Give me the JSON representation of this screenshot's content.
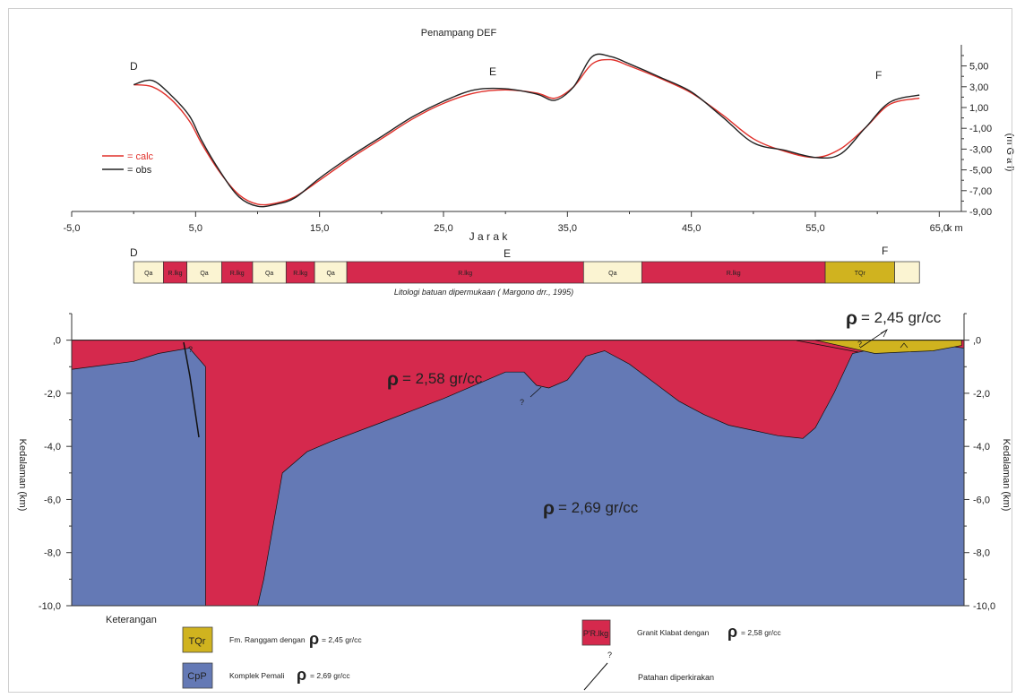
{
  "title": "Penampang DEF",
  "x_axis_label": "J a r a k",
  "x_unit": "k m",
  "x_ticks": [
    "-5,0",
    "5,0",
    "15,0",
    "25,0",
    "35,0",
    "45,0",
    "55,0",
    "65,0"
  ],
  "gravity_axis_label": "(m G a l)",
  "gravity_ticks": [
    "5,00",
    "3,00",
    "1,00",
    "-1,00",
    "-3,00",
    "-5,00",
    "-7,00",
    "-9,00"
  ],
  "depth_axis_label": "Kedalaman (km)",
  "depth_ticks": [
    ",0",
    "-2,0",
    "-4,0",
    "-6,0",
    "-8,0",
    "-10,0"
  ],
  "depth_ticks_right": [
    ",0",
    "-2,0",
    "-4,0",
    "-6,0",
    "-8,0",
    "-10,0"
  ],
  "profile_points": {
    "D": "D",
    "E": "E",
    "F": "F"
  },
  "legend_small": {
    "calc": "= calc",
    "obs": "= obs"
  },
  "lithology_caption": "Litologi batuan dipermukaan ( Margono drr., 1995)",
  "lithology_strip": [
    {
      "label": "Qa",
      "from": 0.0,
      "to": 2.4,
      "color": "#fbf4d2"
    },
    {
      "label": "R.lkg",
      "from": 2.4,
      "to": 4.3,
      "color": "#d5294d"
    },
    {
      "label": "Qa",
      "from": 4.3,
      "to": 7.1,
      "color": "#fbf4d2"
    },
    {
      "label": "R.lkg",
      "from": 7.1,
      "to": 9.6,
      "color": "#d5294d"
    },
    {
      "label": "Qa",
      "from": 9.6,
      "to": 12.3,
      "color": "#fbf4d2"
    },
    {
      "label": "R.lkg",
      "from": 12.3,
      "to": 14.6,
      "color": "#d5294d"
    },
    {
      "label": "Qa",
      "from": 14.6,
      "to": 17.2,
      "color": "#fbf4d2"
    },
    {
      "label": "R.lkg",
      "from": 17.2,
      "to": 36.3,
      "color": "#d5294d"
    },
    {
      "label": "Qa",
      "from": 36.3,
      "to": 41.0,
      "color": "#fbf4d2"
    },
    {
      "label": "R.lkg",
      "from": 41.0,
      "to": 55.8,
      "color": "#d5294d"
    },
    {
      "label": "TQr",
      "from": 55.8,
      "to": 61.4,
      "color": "#d0b31f"
    },
    {
      "label": "",
      "from": 61.4,
      "to": 63.4,
      "color": "#fbf4d2"
    }
  ],
  "density_labels": {
    "granite": "= 2,58 gr/cc",
    "basement": "= 2,69 gr/cc",
    "ranggam": "= 2,45 gr/cc"
  },
  "rho_symbol": "ρ",
  "question_mark": "?",
  "legend_title": "Keterangan",
  "legend_items": [
    {
      "swatch": "TQr",
      "text": "Fm.  Ranggam dengan",
      "density": "= 2,45 gr/cc",
      "color": "#d0b31f"
    },
    {
      "swatch": "CpP",
      "text": "Komplek Pemali",
      "density": "= 2,69 gr/cc",
      "color": "#6479b5"
    },
    {
      "swatch": "P'R.lkg",
      "text": "Granit Klabat dengan",
      "density": "= 2,58 gr/cc",
      "color": "#d5294d"
    },
    {
      "swatch": "?",
      "text": "Patahan diperkirakan",
      "density": "",
      "color": "#000000"
    }
  ],
  "colors": {
    "calc": "#e0302a",
    "obs": "#222222",
    "granite": "#d5294d",
    "basement": "#6479b5",
    "ranggam": "#d0b31f",
    "alluvium": "#fbf4d2"
  },
  "chart_data": [
    {
      "type": "line",
      "title": "Penampang DEF",
      "xlabel": "J a r a k (k m)",
      "ylabel": "(m G a l)",
      "xlim": [
        -5,
        67
      ],
      "ylim": [
        -9,
        6
      ],
      "grid": false,
      "legend": "left",
      "series": [
        {
          "name": "= calc",
          "x": [
            0,
            1.5,
            3,
            4.5,
            5.5,
            7,
            8.5,
            10,
            11.5,
            13,
            15,
            17.5,
            20,
            22.5,
            25,
            27.5,
            30,
            32.5,
            34,
            35.5,
            37,
            38.5,
            40,
            42.5,
            45,
            47.5,
            50,
            52.5,
            55,
            57,
            59,
            61,
            63.4
          ],
          "y": [
            3.2,
            3.0,
            1.8,
            -0.3,
            -2.5,
            -5.3,
            -7.4,
            -8.3,
            -8.2,
            -7.6,
            -6.0,
            -3.9,
            -2.0,
            -0.1,
            1.4,
            2.4,
            2.7,
            2.4,
            1.9,
            3.0,
            5.2,
            5.6,
            5.0,
            3.8,
            2.4,
            0.3,
            -2.0,
            -3.2,
            -3.8,
            -3.0,
            -1.0,
            1.3,
            1.9
          ]
        },
        {
          "name": "= obs",
          "x": [
            0,
            1.5,
            3,
            4.5,
            5.5,
            7,
            8.5,
            10,
            11.5,
            13,
            15,
            17.5,
            20,
            22.5,
            25,
            27.5,
            30,
            32.5,
            34,
            35.5,
            37,
            38.5,
            40,
            42.5,
            45,
            47.5,
            50,
            52.5,
            55,
            57,
            59,
            61,
            63.4
          ],
          "y": [
            3.2,
            3.6,
            2.2,
            0.2,
            -2.2,
            -5.2,
            -7.6,
            -8.5,
            -8.3,
            -7.7,
            -5.8,
            -3.7,
            -1.8,
            0.1,
            1.6,
            2.7,
            2.8,
            2.3,
            1.7,
            3.0,
            5.9,
            5.9,
            5.2,
            3.9,
            2.5,
            0.1,
            -2.4,
            -3.1,
            -3.8,
            -3.5,
            -1.0,
            1.5,
            2.2
          ]
        }
      ]
    },
    {
      "type": "area",
      "title": "",
      "xlabel": "J a r a k (k m)",
      "ylabel": "Kedalaman (km)",
      "xlim": [
        -5,
        67
      ],
      "ylim": [
        -10,
        1
      ],
      "grid": false,
      "legend": "bottom",
      "series": [
        {
          "name": "Komplek Pemali",
          "x": [
            -5,
            0,
            2,
            4.5,
            5.8,
            5.8,
            10,
            10.5,
            12,
            14,
            16,
            20,
            25,
            28,
            30,
            31.5,
            32.5,
            33.5,
            35,
            36.5,
            38,
            40,
            42,
            44,
            46,
            48,
            50,
            52,
            54,
            55,
            56.5,
            58,
            60,
            62,
            64,
            65.5,
            67
          ],
          "y": [
            -1.1,
            -0.8,
            -0.5,
            -0.3,
            -1.0,
            -10.0,
            -10.0,
            -9.0,
            -5.0,
            -4.2,
            -3.8,
            -3.1,
            -2.2,
            -1.6,
            -1.2,
            -1.2,
            -1.7,
            -1.8,
            -1.5,
            -0.6,
            -0.4,
            -0.9,
            -1.6,
            -2.3,
            -2.8,
            -3.2,
            -3.4,
            -3.6,
            -3.7,
            -3.3,
            -2.0,
            -0.5,
            -0.3,
            -0.3,
            -0.4,
            -0.2,
            -0.3
          ]
        },
        {
          "name": "Granit Klabat",
          "x": [
            -5,
            67
          ],
          "y": [
            0,
            0
          ]
        },
        {
          "name": "Fm. Ranggam",
          "x": [
            55,
            59.8,
            62,
            64.5,
            66.8
          ],
          "y": [
            0,
            -0.5,
            -0.45,
            -0.4,
            -0.2
          ]
        }
      ]
    }
  ]
}
